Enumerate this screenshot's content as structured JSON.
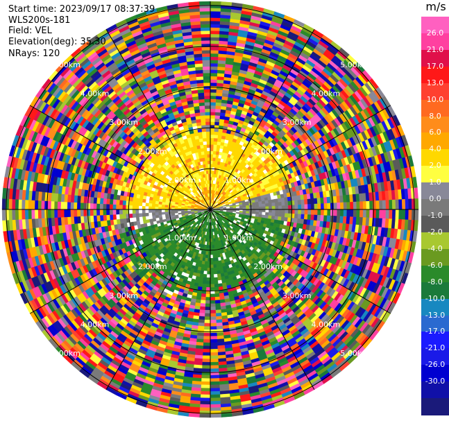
{
  "header": {
    "start_time": "Start time: 2023/09/17 08:37:39",
    "instrument": "WLS200s-181",
    "field": "Field: VEL",
    "elevation": "Elevation(deg): 35.30",
    "nrays": "NRays: 120"
  },
  "colorbar": {
    "unit": "m/s",
    "colors": [
      "#1a1a7a",
      "#1010a8",
      "#0000d0",
      "#1a1ae8",
      "#1a1aff",
      "#2a6ad0",
      "#1888c0",
      "#1a7a3a",
      "#2a8a2a",
      "#6a9a20",
      "#a8c830",
      "#5a5a5a",
      "#7a7a7a",
      "#888898",
      "#ffff40",
      "#ffd800",
      "#ffa800",
      "#ff8c1a",
      "#ff6a20",
      "#ff4030",
      "#ff1818",
      "#e0104a",
      "#ff40a0",
      "#ff60c0"
    ],
    "labels": [
      "-30.0",
      "-26.0",
      "-21.0",
      "-17.0",
      "-13.0",
      "-10.0",
      "-8.0",
      "-6.0",
      "-4.0",
      "-2.0",
      "-1.0",
      "0.0",
      "1.0",
      "2.0",
      "4.0",
      "6.0",
      "8.0",
      "10.0",
      "13.0",
      "17.0",
      "21.0",
      "26.0"
    ]
  },
  "ppi": {
    "range_rings_km": [
      "1.00km",
      "2.00km",
      "3.00km",
      "4.00km",
      "5.00km"
    ],
    "max_range_km": 5.1,
    "nrays": 120
  }
}
